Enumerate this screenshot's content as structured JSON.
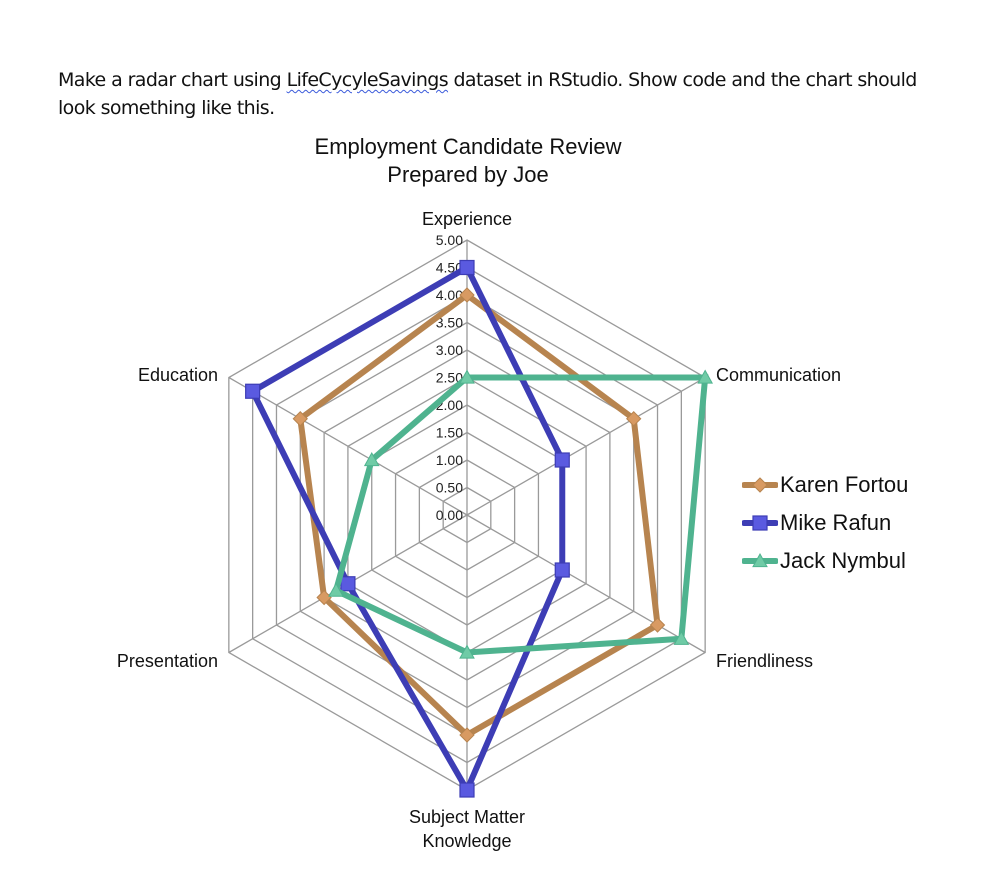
{
  "prompt": {
    "before": "Make a radar chart using ",
    "dataset": "LifeCycyleSavings",
    "after": " dataset in RStudio. Show code and the chart should look something like this."
  },
  "chart_data": {
    "type": "radar",
    "title": "Employment Candidate Review",
    "subtitle": "Prepared by Joe",
    "categories": [
      "Experience",
      "Communication",
      "Friendliness",
      "Subject Matter Knowledge",
      "Presentation",
      "Education"
    ],
    "rlim": [
      0,
      5
    ],
    "ticks": [
      "0.00",
      "0.50",
      "1.00",
      "1.50",
      "2.00",
      "2.50",
      "3.00",
      "3.50",
      "4.00",
      "4.50",
      "5.00"
    ],
    "grid": true,
    "legend_position": "right",
    "series": [
      {
        "name": "Karen Fortou",
        "color": "#b7844f",
        "marker": "diamond",
        "values": [
          4.0,
          3.5,
          4.0,
          4.0,
          3.0,
          3.5
        ]
      },
      {
        "name": "Mike Rafun",
        "color": "#3d3db5",
        "marker": "square",
        "values": [
          4.5,
          2.0,
          2.0,
          5.0,
          2.5,
          4.5
        ]
      },
      {
        "name": "Jack Nymbul",
        "color": "#4fb38f",
        "marker": "triangle",
        "values": [
          2.5,
          5.0,
          4.5,
          2.5,
          2.75,
          2.0
        ]
      }
    ]
  }
}
